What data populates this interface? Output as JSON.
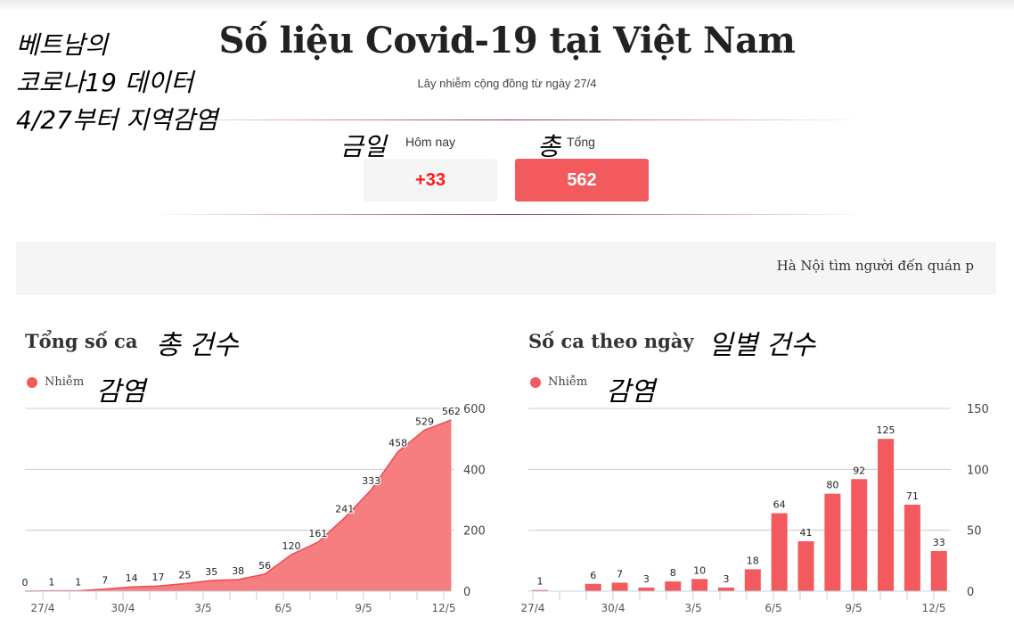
{
  "annotation_ko": {
    "line1": "베트남의",
    "line2": "코로나19 데이터",
    "line3": "4/27부터 지역감염"
  },
  "header": {
    "title": "Số liệu Covid-19 tại Việt Nam",
    "subtitle": "Lây nhiễm cộng đồng từ ngày 27/4"
  },
  "stats": {
    "today": {
      "label": "Hôm nay",
      "label_ko": "금일",
      "value": "+33",
      "color": "#ff1a1a"
    },
    "total": {
      "label": "Tổng",
      "label_ko": "총",
      "value": "562",
      "color": "#f25a5e"
    }
  },
  "ticker": {
    "text": "Hà Nội tìm người đến quán p"
  },
  "charts": {
    "cumulative": {
      "title": "Tổng số ca",
      "title_ko": "총 건수",
      "legend": "Nhiễm",
      "legend_ko": "감염"
    },
    "daily": {
      "title": "Số ca theo ngày",
      "title_ko": "일별 건수",
      "legend": "Nhiễm",
      "legend_ko": "감염"
    }
  },
  "colors": {
    "accent": "#f25a5e",
    "area_fill": "#f67e80",
    "grid": "#cccccc",
    "axis": "#c6d0e3"
  },
  "chart_data": [
    {
      "type": "area",
      "title": "Tổng số ca",
      "legend": [
        "Nhiễm"
      ],
      "xlabel": "",
      "ylabel": "",
      "x_tick_labels": [
        "27/4",
        "30/4",
        "3/5",
        "6/5",
        "9/5",
        "12/5"
      ],
      "values": [
        0,
        1,
        1,
        7,
        14,
        17,
        25,
        35,
        38,
        56,
        120,
        161,
        241,
        333,
        458,
        529,
        562
      ],
      "y_ticks": [
        0,
        200,
        400,
        600
      ],
      "ylim": [
        0,
        600
      ],
      "grid": true,
      "y_axis_position": "right"
    },
    {
      "type": "bar",
      "title": "Số ca theo ngày",
      "legend": [
        "Nhiễm"
      ],
      "xlabel": "",
      "ylabel": "",
      "x_tick_labels": [
        "27/4",
        "30/4",
        "3/5",
        "6/5",
        "9/5",
        "12/5"
      ],
      "values": [
        1,
        0,
        6,
        7,
        3,
        8,
        10,
        3,
        18,
        64,
        41,
        80,
        92,
        125,
        71,
        33
      ],
      "value_labels": [
        "1",
        "",
        "6",
        "7",
        "3",
        "8",
        "10",
        "3",
        "18",
        "64",
        "41",
        "80",
        "92",
        "125",
        "71",
        "33"
      ],
      "y_ticks": [
        0,
        50,
        100,
        150
      ],
      "ylim": [
        0,
        150
      ],
      "grid": true,
      "y_axis_position": "right"
    }
  ]
}
